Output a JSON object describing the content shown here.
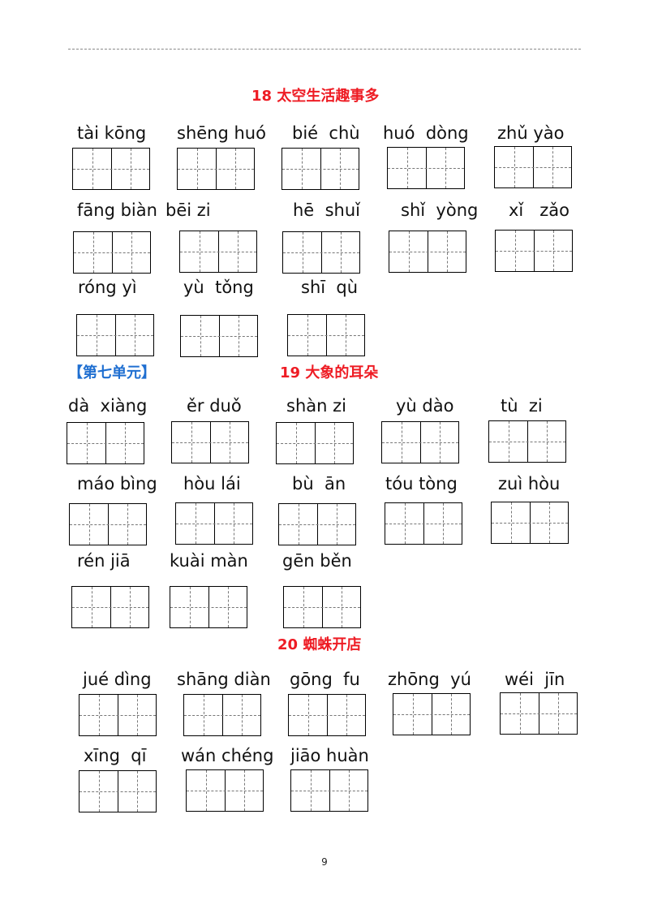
{
  "page": {
    "lesson18_title": "18  太空生活趣事多",
    "unit_label": "【第七单元】",
    "lesson19_title": "19 大象的耳朵",
    "lesson20_title": "20 蜘蛛开店",
    "page_number": "9"
  },
  "lesson18": {
    "words": [
      "tài kōng",
      "shēng huó",
      "bié  chù",
      "huó  dòng",
      "zhǔ yào",
      "fāng biàn",
      "bēi zi",
      "hē  shuǐ",
      "shǐ  yòng",
      "xǐ   zǎo",
      "róng yì",
      "yù  tǒng",
      "shī  qù"
    ]
  },
  "lesson19": {
    "words": [
      "dà  xiàng",
      "ěr duǒ",
      "shàn zi",
      "yù dào",
      "tù  zi",
      "máo bìng",
      "hòu lái",
      "bù  ān",
      "tóu tòng",
      "zuì hòu",
      "rén jiā",
      "kuài màn",
      "gēn běn"
    ]
  },
  "lesson20": {
    "words": [
      "jué dìng",
      "shāng diàn",
      "gōng  fu",
      "zhōng  yú",
      "wéi  jīn",
      "xīng  qī",
      "wán chéng",
      "jiāo huàn"
    ]
  }
}
